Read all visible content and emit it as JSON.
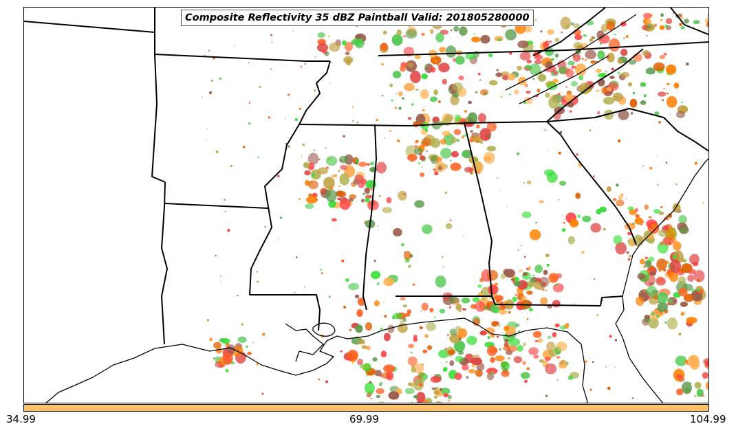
{
  "title": "Composite Reflectivity 35 dBZ Paintball Valid: 201805280000",
  "colorbar": {
    "color": "#FFC266",
    "ticks": [
      "34.99",
      "69.99",
      "104.99"
    ]
  },
  "ensemble_colors": [
    "#FF8000",
    "#E06000",
    "#FF4040",
    "#E04040",
    "#50C850",
    "#5A9A4A",
    "#9A5A4A",
    "#B0B050",
    "#FFB050",
    "#C0A040",
    "#FF6020",
    "#33DD33"
  ]
}
